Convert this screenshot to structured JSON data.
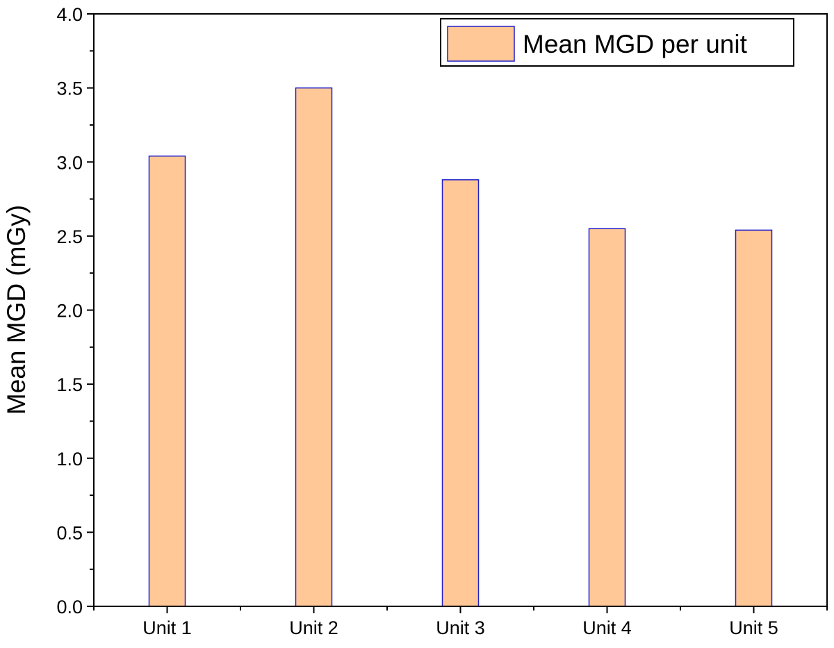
{
  "chart_data": {
    "type": "bar",
    "title": "",
    "xlabel": "",
    "ylabel": "Mean MGD (mGy)",
    "categories": [
      "Unit 1",
      "Unit 2",
      "Unit 3",
      "Unit 4",
      "Unit 5"
    ],
    "series": [
      {
        "name": "Mean MGD per unit",
        "values": [
          3.04,
          3.5,
          2.88,
          2.55,
          2.54
        ]
      }
    ],
    "ylim": [
      0,
      4.0
    ],
    "yticks": [
      "0.0",
      "0.5",
      "1.0",
      "1.5",
      "2.0",
      "2.5",
      "3.0",
      "3.5",
      "4.0"
    ],
    "legend_position": "top-right",
    "grid": false,
    "colors": {
      "bar_fill": "#FFC896",
      "bar_edge": "#1F1FCC"
    }
  }
}
